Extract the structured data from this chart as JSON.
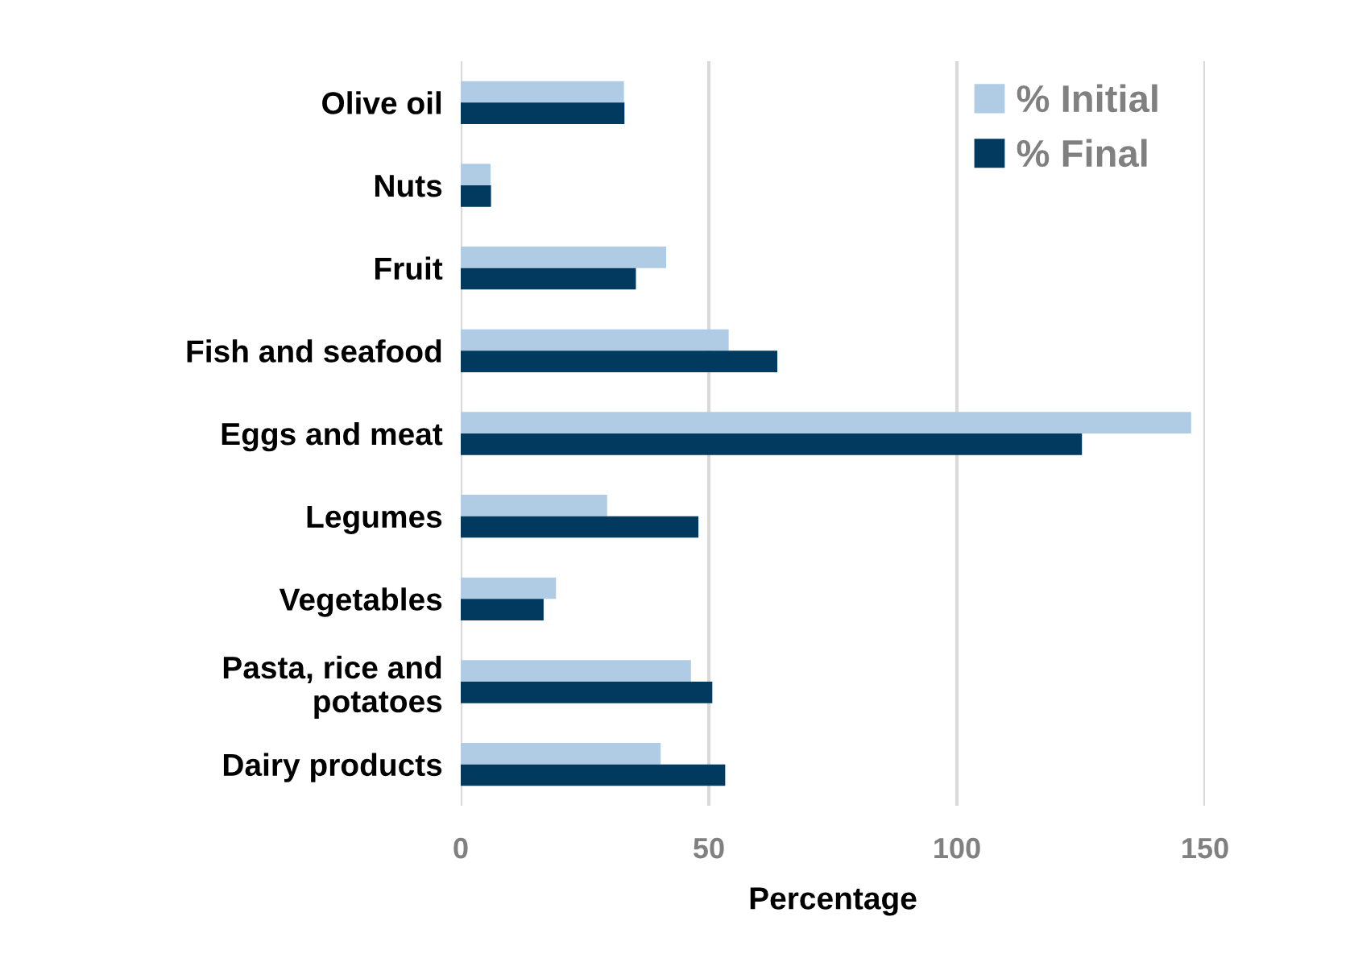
{
  "chart_data": {
    "type": "bar",
    "orientation": "horizontal",
    "xlabel": "Percentage",
    "categories": [
      "Olive oil",
      "Nuts",
      "Fruit",
      "Fish and seafood",
      "Eggs and meat",
      "Legumes",
      "Vegetables",
      "Pasta, rice and\npotatoes",
      "Dairy products"
    ],
    "series": [
      {
        "name": "% Initial",
        "color": "#b0cce4",
        "values": [
          32.9,
          6.0,
          41.4,
          54.0,
          147.2,
          29.5,
          19.2,
          46.4,
          40.3
        ]
      },
      {
        "name": "% Final",
        "color": "#023a5f",
        "values": [
          33.0,
          6.1,
          35.3,
          63.8,
          125.2,
          47.9,
          16.7,
          50.7,
          53.3
        ]
      }
    ],
    "xlim": [
      0,
      150
    ],
    "xticks": [
      0,
      50,
      100,
      150
    ],
    "grid": "x",
    "legend": "top right"
  }
}
